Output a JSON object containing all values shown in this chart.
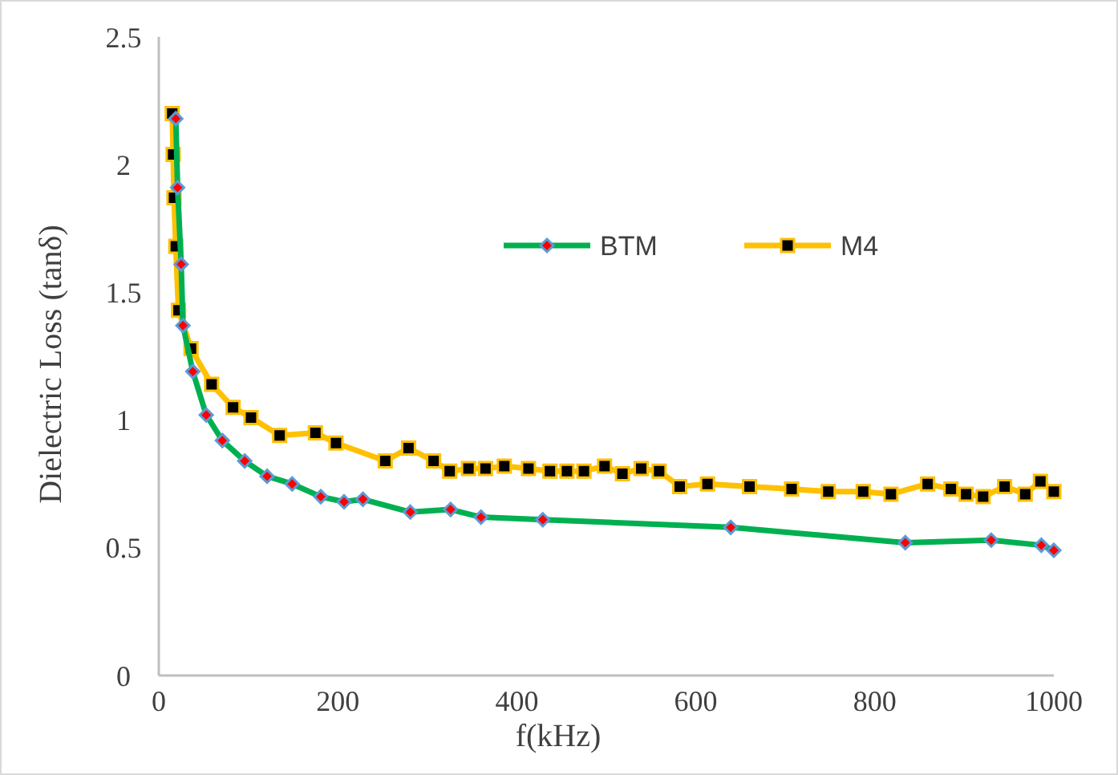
{
  "chart_data": {
    "type": "line",
    "xlabel": "f(kHz)",
    "ylabel": "Dielectric Loss (tanδ)",
    "xlim": [
      0,
      1000
    ],
    "xticks": [
      0,
      200,
      400,
      600,
      800,
      1000
    ],
    "ylim": [
      0,
      2.5
    ],
    "yticks": [
      0,
      0.5,
      1,
      1.5,
      2,
      2.5
    ],
    "grid": false,
    "legend": "top",
    "series": [
      {
        "name": "BTM",
        "color": "#00b050",
        "marker": "diamond",
        "x": [
          19,
          21,
          25,
          27,
          38,
          53,
          71,
          96,
          121,
          149,
          181,
          207,
          228,
          281,
          326,
          360,
          429,
          639,
          834,
          930,
          986,
          1000
        ],
        "values": [
          2.18,
          1.91,
          1.61,
          1.37,
          1.19,
          1.02,
          0.92,
          0.84,
          0.78,
          0.75,
          0.7,
          0.68,
          0.69,
          0.64,
          0.65,
          0.62,
          0.61,
          0.58,
          0.52,
          0.53,
          0.51,
          0.49
        ]
      },
      {
        "name": "M4",
        "color": "#ffc000",
        "marker": "square",
        "x": [
          15,
          16,
          17,
          19,
          22,
          36,
          59,
          83,
          103,
          135,
          175,
          198,
          253,
          279,
          307,
          325,
          346,
          365,
          386,
          413,
          437,
          456,
          475,
          498,
          518,
          539,
          559,
          582,
          613,
          660,
          707,
          748,
          787,
          818,
          859,
          885,
          902,
          921,
          945,
          968,
          985,
          1000
        ],
        "values": [
          2.2,
          2.04,
          1.87,
          1.68,
          1.43,
          1.28,
          1.14,
          1.05,
          1.01,
          0.94,
          0.95,
          0.91,
          0.84,
          0.89,
          0.84,
          0.8,
          0.81,
          0.81,
          0.82,
          0.81,
          0.8,
          0.8,
          0.8,
          0.82,
          0.79,
          0.81,
          0.8,
          0.74,
          0.75,
          0.74,
          0.73,
          0.72,
          0.72,
          0.71,
          0.75,
          0.73,
          0.71,
          0.7,
          0.74,
          0.71,
          0.76,
          0.72
        ]
      }
    ]
  }
}
